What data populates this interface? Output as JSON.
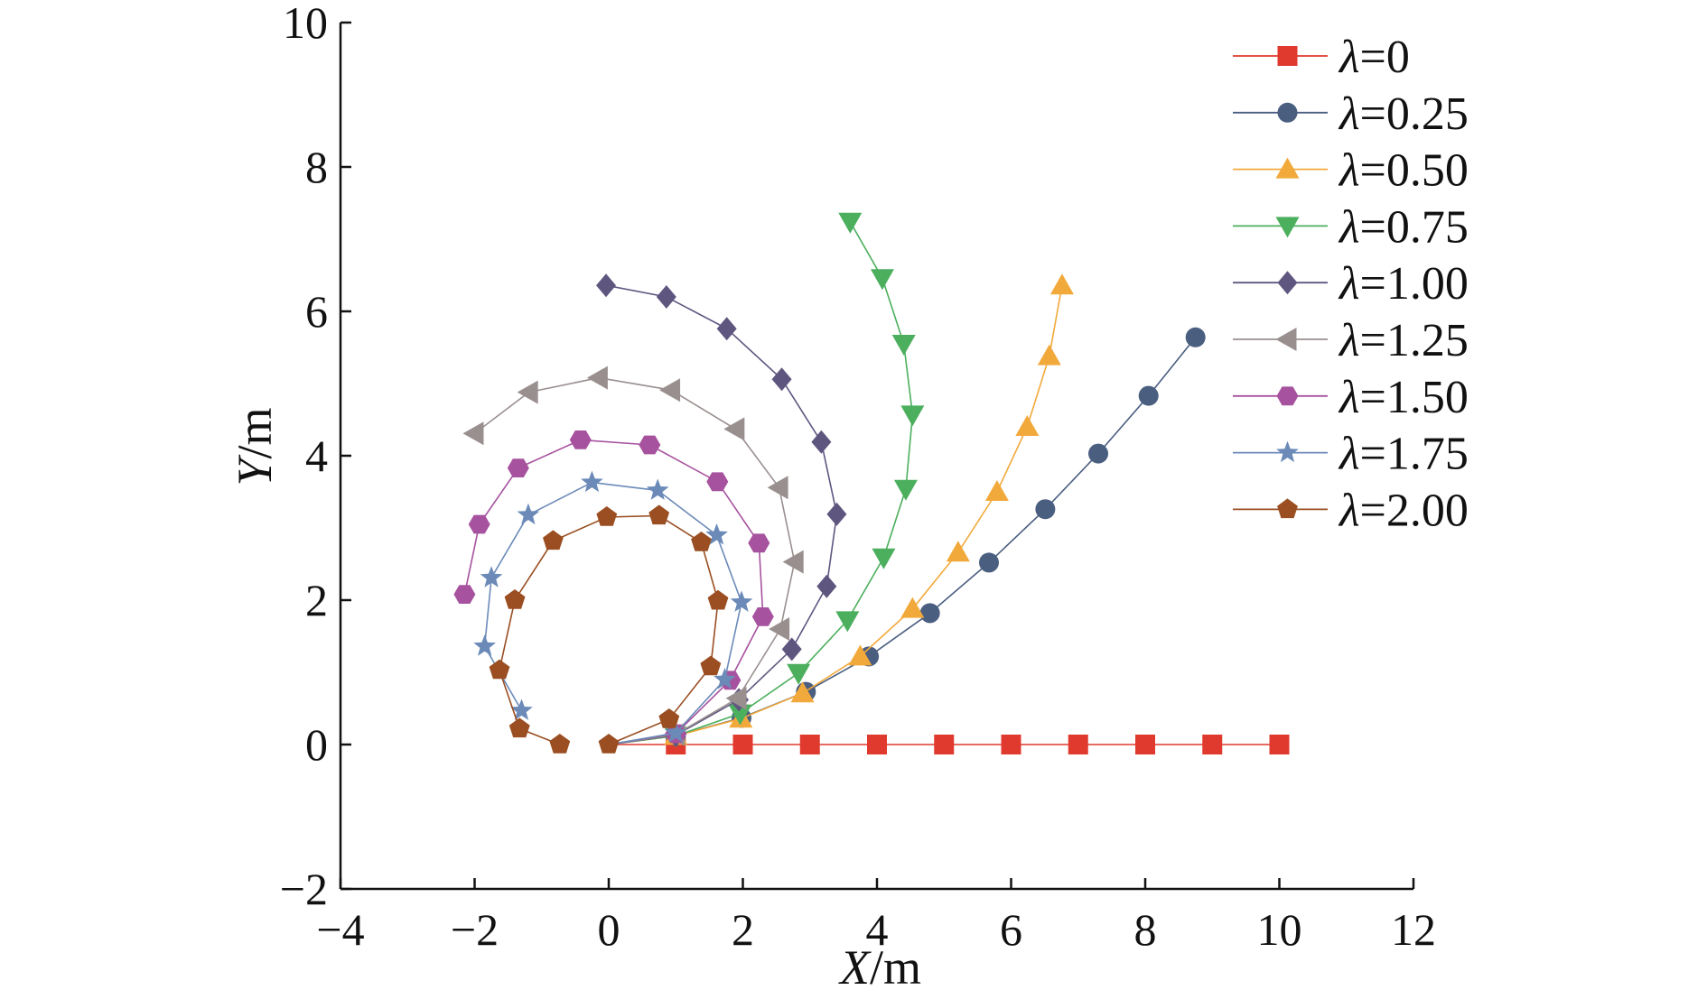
{
  "chart_data": {
    "type": "line",
    "title": "",
    "xlabel": "X/m",
    "xlabel_var": "X",
    "xlabel_unit": "/m",
    "ylabel": "Y/m",
    "ylabel_var": "Y",
    "ylabel_unit": "/m",
    "xlim": [
      -4,
      12
    ],
    "ylim": [
      -2,
      10
    ],
    "xticks": [
      -4,
      -2,
      0,
      2,
      4,
      6,
      8,
      10,
      12
    ],
    "yticks": [
      -2,
      0,
      2,
      4,
      6,
      8,
      10
    ],
    "xtick_labels": [
      "−4",
      "−2",
      "0",
      "2",
      "4",
      "6",
      "8",
      "10",
      "12"
    ],
    "ytick_labels": [
      "−2",
      "0",
      "2",
      "4",
      "6",
      "8",
      "10"
    ],
    "grid": false,
    "legend_position": "top-right",
    "series": [
      {
        "name": "λ=0",
        "symbol": "λ",
        "value_label": "=0",
        "color": "#e03a2e",
        "marker": "square",
        "x": [
          1.0,
          2.0,
          3.0,
          4.0,
          5.0,
          6.0,
          7.0,
          8.0,
          9.0,
          10.0
        ],
        "y": [
          0,
          0,
          0,
          0,
          0,
          0,
          0,
          0,
          0,
          0
        ]
      },
      {
        "name": "λ=0.25",
        "symbol": "λ",
        "value_label": "=0.25",
        "color": "#4a5e80",
        "marker": "circle",
        "x": [
          1.0,
          1.98,
          2.94,
          3.88,
          4.79,
          5.67,
          6.51,
          7.3,
          8.05,
          8.75
        ],
        "y": [
          0.12,
          0.37,
          0.73,
          1.22,
          1.82,
          2.52,
          3.26,
          4.03,
          4.83,
          5.64
        ]
      },
      {
        "name": "λ=0.50",
        "symbol": "λ",
        "value_label": "=0.50",
        "color": "#f2a93b",
        "marker": "triangle-up",
        "x": [
          1.0,
          1.97,
          2.89,
          3.75,
          4.53,
          5.21,
          5.79,
          6.24,
          6.57,
          6.76
        ],
        "y": [
          0.12,
          0.36,
          0.71,
          1.22,
          1.88,
          2.66,
          3.5,
          4.4,
          5.38,
          6.36
        ]
      },
      {
        "name": "λ=0.75",
        "symbol": "λ",
        "value_label": "=0.75",
        "color": "#4caf5e",
        "marker": "triangle-down",
        "x": [
          1.0,
          1.96,
          2.83,
          3.56,
          4.1,
          4.43,
          4.53,
          4.4,
          4.08,
          3.6
        ],
        "y": [
          0.12,
          0.43,
          0.99,
          1.72,
          2.59,
          3.54,
          4.57,
          5.55,
          6.46,
          7.24
        ]
      },
      {
        "name": "λ=1.00",
        "symbol": "λ",
        "value_label": "=1.00",
        "color": "#5f5680",
        "marker": "diamond",
        "x": [
          1.0,
          1.94,
          2.73,
          3.25,
          3.4,
          3.17,
          2.58,
          1.76,
          0.86,
          -0.04
        ],
        "y": [
          0.13,
          0.62,
          1.32,
          2.19,
          3.19,
          4.19,
          5.06,
          5.76,
          6.2,
          6.36
        ]
      },
      {
        "name": "λ=1.25",
        "symbol": "λ",
        "value_label": "=1.25",
        "color": "#9a8f8f",
        "marker": "triangle-left",
        "x": [
          1.0,
          1.92,
          2.56,
          2.77,
          2.54,
          1.89,
          0.93,
          -0.15,
          -1.19,
          -2.0
        ],
        "y": [
          0.14,
          0.64,
          1.6,
          2.53,
          3.56,
          4.37,
          4.91,
          5.08,
          4.88,
          4.31
        ]
      },
      {
        "name": "λ=1.50",
        "symbol": "λ",
        "value_label": "=1.50",
        "color": "#a6529e",
        "marker": "hexagon",
        "x": [
          1.0,
          1.81,
          2.3,
          2.24,
          1.62,
          0.61,
          -0.42,
          -1.35,
          -1.93,
          -2.15
        ],
        "y": [
          0.15,
          0.89,
          1.77,
          2.79,
          3.64,
          4.15,
          4.22,
          3.83,
          3.05,
          2.08
        ]
      },
      {
        "name": "λ=1.75",
        "symbol": "λ",
        "value_label": "=1.75",
        "color": "#6b8ab8",
        "marker": "star",
        "x": [
          1.0,
          1.73,
          1.98,
          1.61,
          0.73,
          -0.25,
          -1.2,
          -1.75,
          -1.85,
          -1.3
        ],
        "y": [
          0.16,
          0.9,
          1.97,
          2.9,
          3.52,
          3.63,
          3.18,
          2.31,
          1.36,
          0.47
        ]
      },
      {
        "name": "λ=2.00",
        "symbol": "λ",
        "value_label": "=2.00",
        "color": "#9a4e22",
        "marker": "pentagon",
        "x": [
          0.0,
          0.9,
          1.52,
          1.63,
          1.38,
          0.75,
          -0.03,
          -0.83,
          -1.4,
          -1.63,
          -1.33,
          -0.73
        ],
        "y": [
          0.0,
          0.35,
          1.08,
          1.99,
          2.8,
          3.17,
          3.15,
          2.82,
          2.0,
          1.03,
          0.22,
          0.0
        ]
      }
    ]
  }
}
